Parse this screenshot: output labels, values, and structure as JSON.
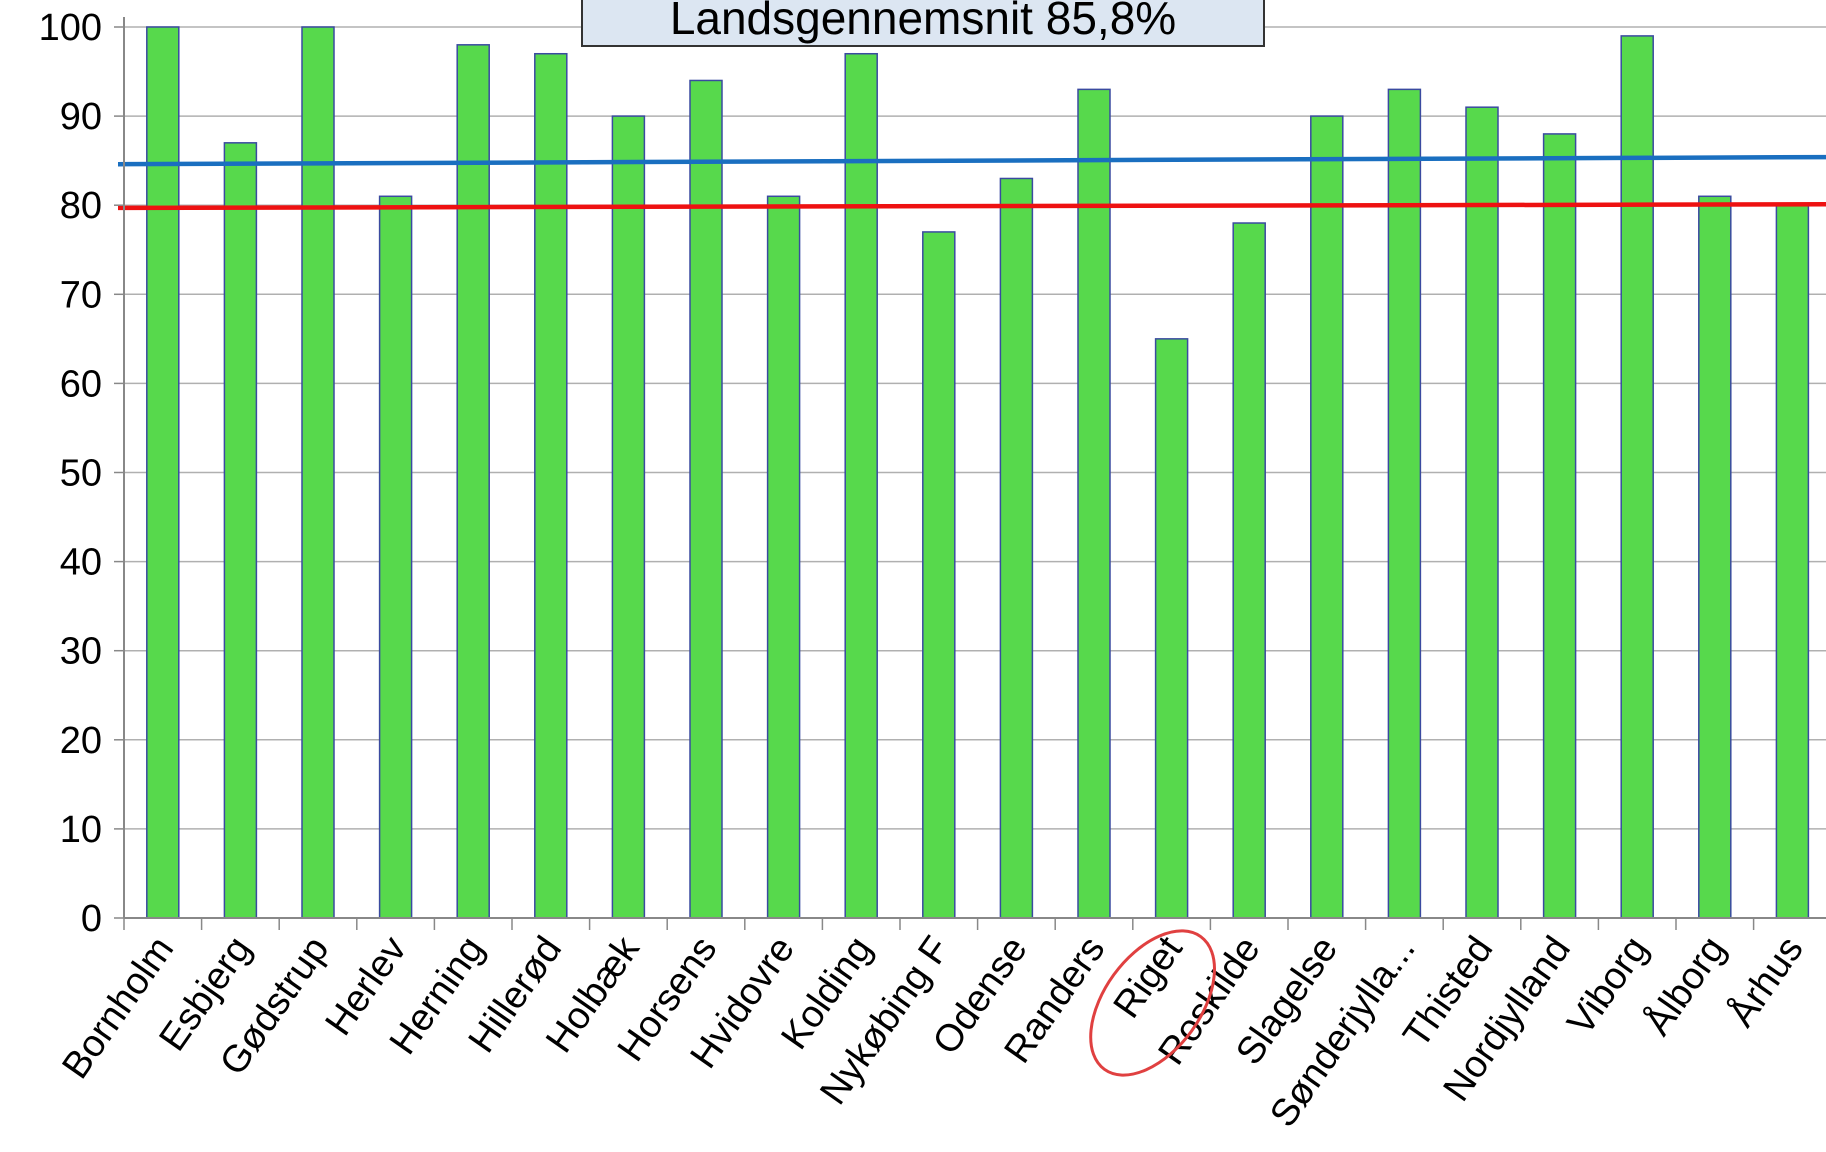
{
  "chart_data": {
    "type": "bar",
    "categories": [
      "Bornholm",
      "Esbjerg",
      "Gødstrup",
      "Herlev",
      "Herning",
      "Hillerød",
      "Holbæk",
      "Horsens",
      "Hvidovre",
      "Kolding",
      "Nykøbing F",
      "Odense",
      "Randers",
      "Riget",
      "Roskilde",
      "Slagelse",
      "Sønderjylla...",
      "Thisted",
      "Nordjylland",
      "Viborg",
      "Ålborg",
      "Århus"
    ],
    "values": [
      100,
      87,
      100,
      81,
      98,
      97,
      90,
      94,
      81,
      97,
      77,
      83,
      93,
      65,
      78,
      90,
      93,
      91,
      88,
      99,
      81,
      80
    ],
    "ylim": [
      0,
      100
    ],
    "yticks": [
      0,
      10,
      20,
      30,
      40,
      50,
      60,
      70,
      80,
      90,
      100
    ],
    "grid": true,
    "bar_color": "#57d94c",
    "bar_border_color": "#3a4aa0",
    "reference_lines": [
      {
        "color": "#1a6fc0",
        "y_start": 84.6,
        "y_end": 85.4
      },
      {
        "color": "#ee1111",
        "y_start": 79.7,
        "y_end": 80.1
      }
    ],
    "callout": "Landsgennemsnit 85,8%",
    "highlighted_category": "Riget",
    "highlight_color": "#e04040"
  }
}
